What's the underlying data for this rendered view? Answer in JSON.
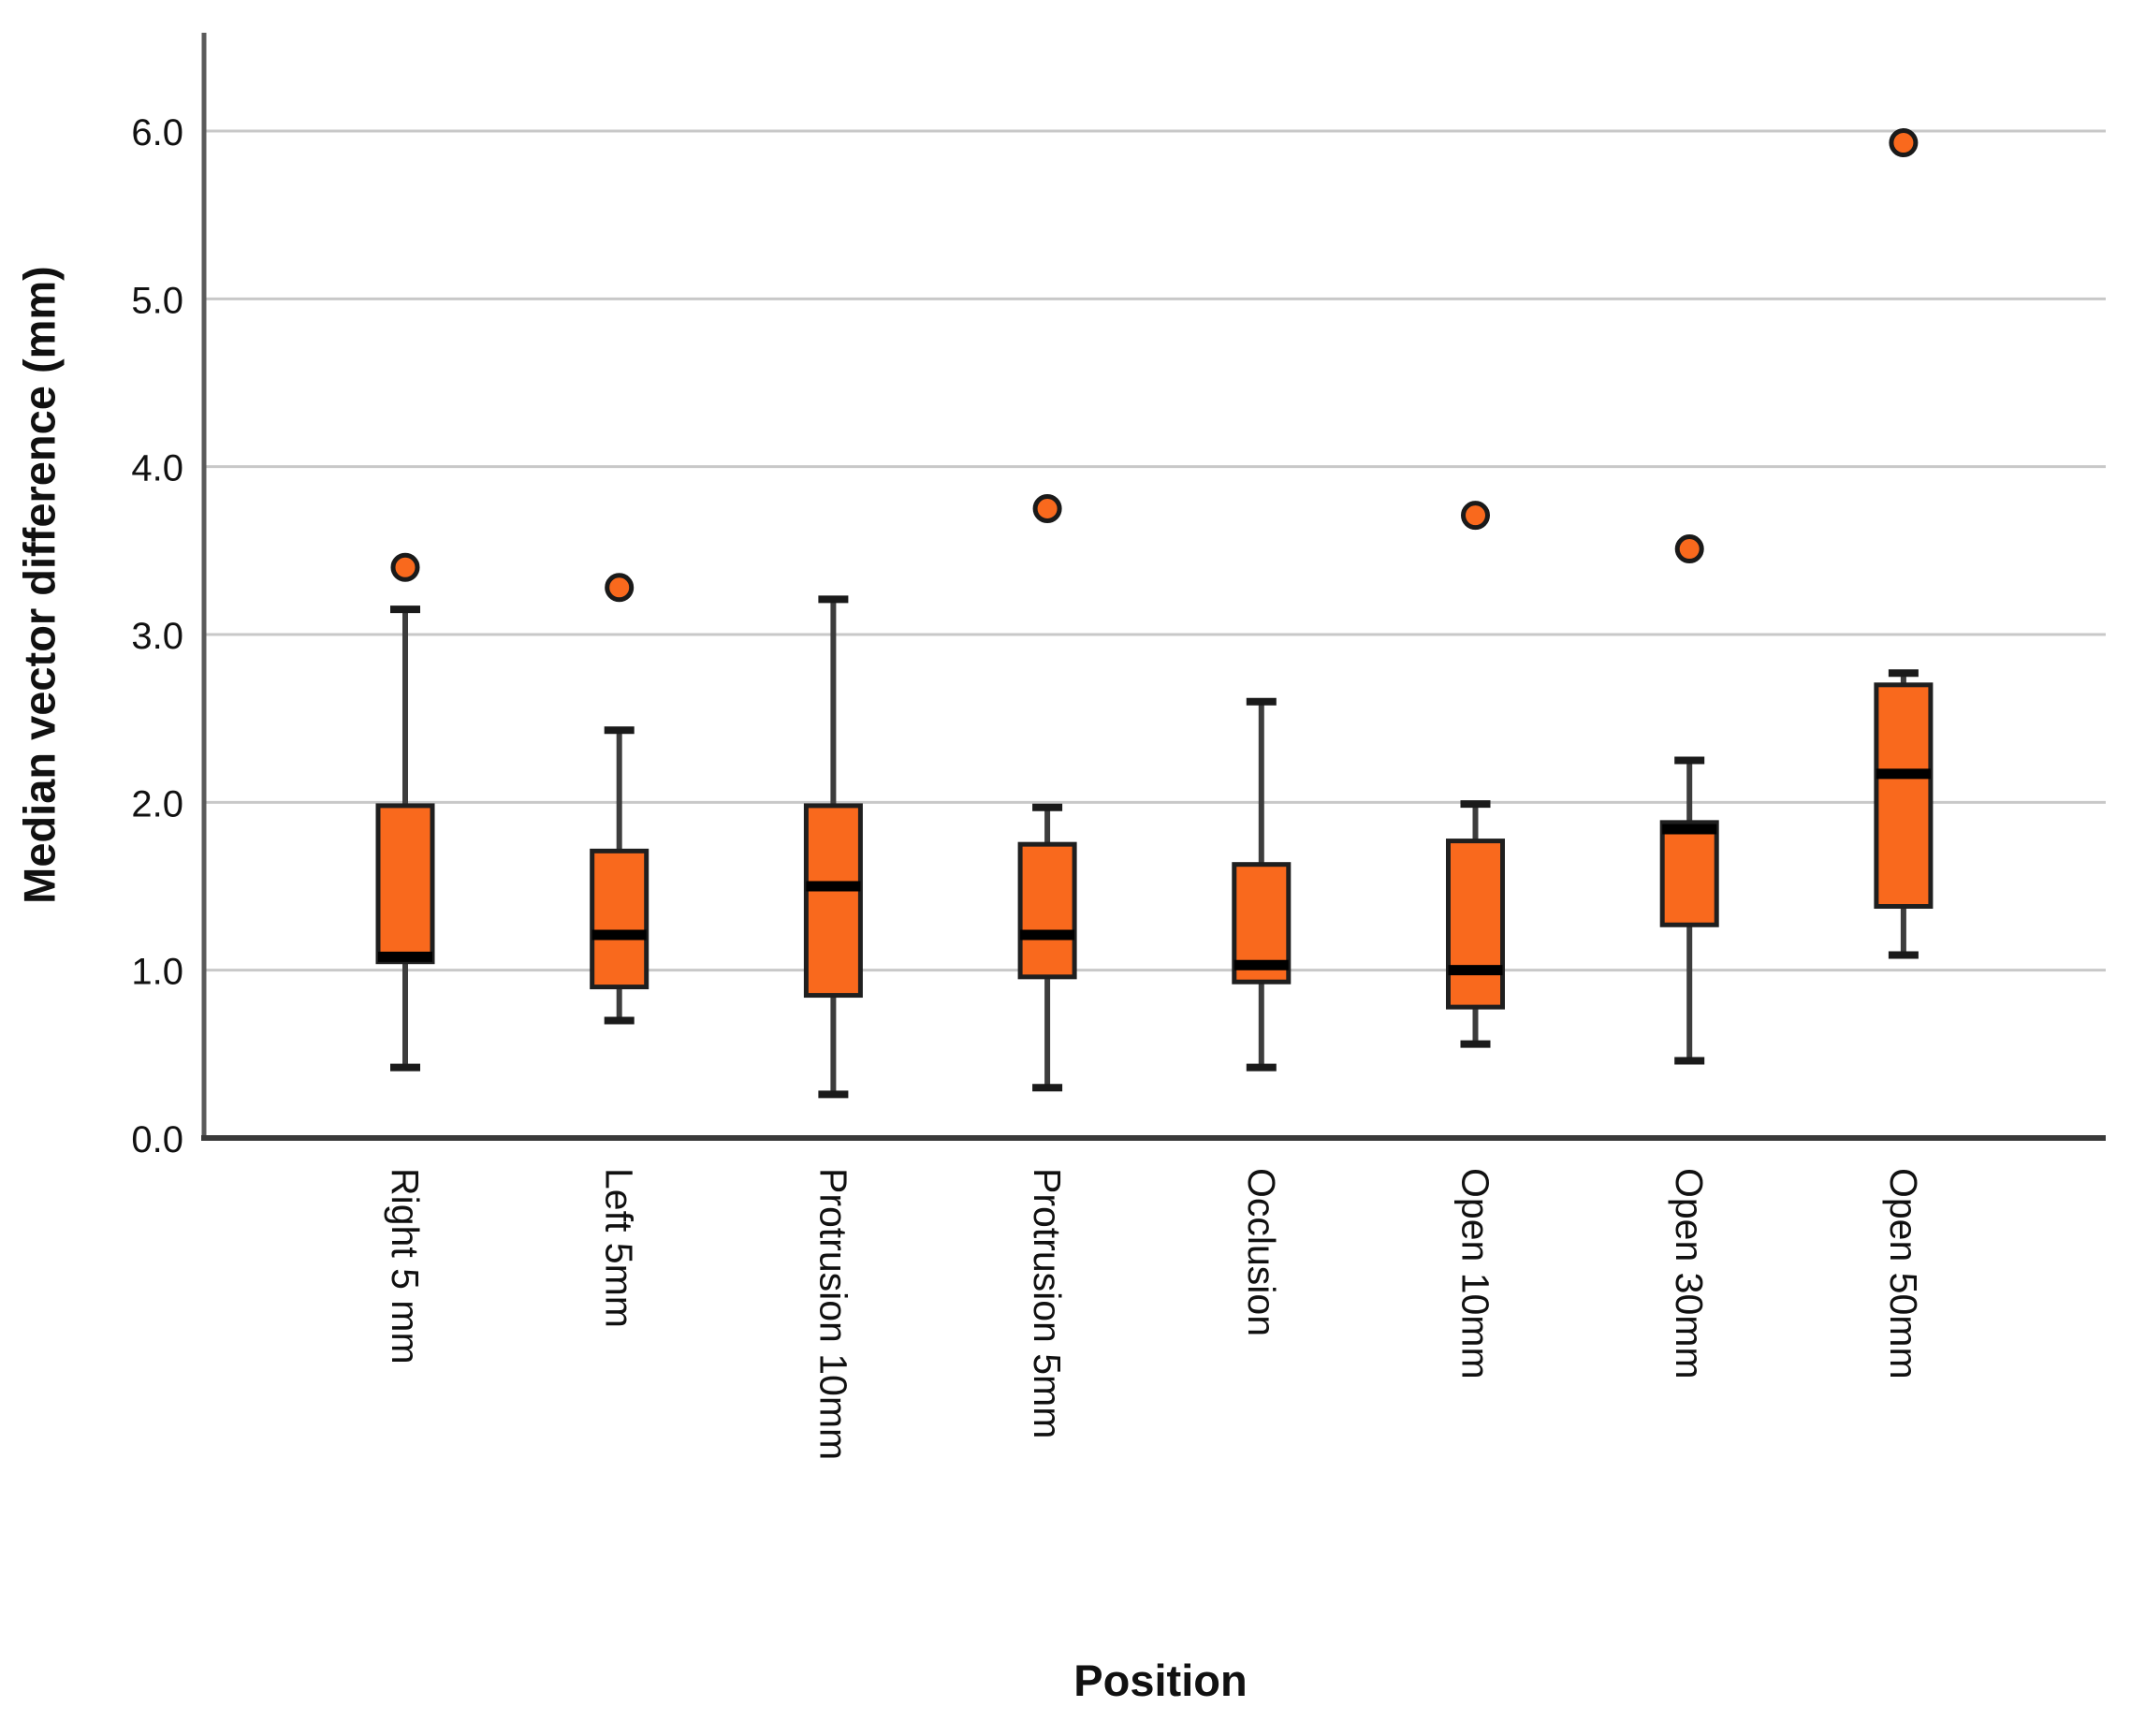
{
  "chart_data": {
    "type": "boxplot",
    "title": "",
    "xlabel": "Position",
    "ylabel": "Median vector difference (mm)",
    "ylim": [
      0,
      6.6
    ],
    "yticks": [
      0,
      1,
      2,
      3,
      4,
      5,
      6
    ],
    "ytick_labels": [
      "0.0",
      "1.0",
      "2.0",
      "3.0",
      "4.0",
      "5.0",
      "6.0"
    ],
    "grid": true,
    "legend": "none",
    "categories": [
      "Right 5 mm",
      "Left 5mm",
      "Protrusion 10mm",
      "Protrusion 5mm",
      "Occlusion",
      "Open 10mm",
      "Open 30mm",
      "Open 50mm"
    ],
    "boxes": [
      {
        "category": "Right 5 mm",
        "whisker_low": 0.42,
        "q1": 1.05,
        "median": 1.08,
        "q3": 1.98,
        "whisker_high": 3.15,
        "outliers": [
          3.4
        ]
      },
      {
        "category": "Left 5mm",
        "whisker_low": 0.7,
        "q1": 0.9,
        "median": 1.21,
        "q3": 1.71,
        "whisker_high": 2.43,
        "outliers": [
          3.28
        ]
      },
      {
        "category": "Protrusion 10mm",
        "whisker_low": 0.26,
        "q1": 0.85,
        "median": 1.5,
        "q3": 1.98,
        "whisker_high": 3.21,
        "outliers": []
      },
      {
        "category": "Protrusion 5mm",
        "whisker_low": 0.3,
        "q1": 0.96,
        "median": 1.21,
        "q3": 1.75,
        "whisker_high": 1.97,
        "outliers": [
          3.75
        ]
      },
      {
        "category": "Occlusion",
        "whisker_low": 0.42,
        "q1": 0.93,
        "median": 1.03,
        "q3": 1.63,
        "whisker_high": 2.6,
        "outliers": []
      },
      {
        "category": "Open 10mm",
        "whisker_low": 0.56,
        "q1": 0.78,
        "median": 1.0,
        "q3": 1.77,
        "whisker_high": 1.99,
        "outliers": [
          3.71
        ]
      },
      {
        "category": "Open 30mm",
        "whisker_low": 0.46,
        "q1": 1.27,
        "median": 1.84,
        "q3": 1.88,
        "whisker_high": 2.25,
        "outliers": [
          3.51
        ]
      },
      {
        "category": "Open 50mm",
        "whisker_low": 1.09,
        "q1": 1.38,
        "median": 2.17,
        "q3": 2.7,
        "whisker_high": 2.77,
        "outliers": [
          5.93
        ]
      }
    ],
    "colors": {
      "background": "#ffffff",
      "box_fill": "#f9691d",
      "box_border": "#1f1f1f",
      "median_line": "#000000",
      "whisker_line": "#3d3d3d",
      "whisker_cap": "#1a1a1a",
      "outlier_fill": "#f9691d",
      "outlier_border": "#1a1a1a",
      "gridline": "#c8c8c8",
      "axis_line": "#3a3a3a",
      "text": "#111111"
    }
  }
}
